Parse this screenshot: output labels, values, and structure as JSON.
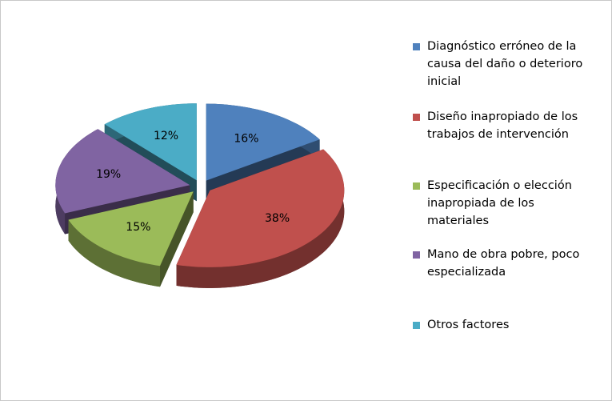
{
  "chart_data": {
    "type": "pie",
    "categories": [
      "Diagnóstico erróneo de la causa del daño o deterioro inicial",
      "Diseño inapropiado de los trabajos de intervención",
      "Especificación o elección inapropiada de los materiales",
      "Mano de obra pobre, poco especializada",
      "Otros factores"
    ],
    "values": [
      16,
      38,
      15,
      19,
      12
    ],
    "value_labels": [
      "16%",
      "38%",
      "15%",
      "19%",
      "12%"
    ],
    "colors": [
      "#4f81bd",
      "#c0504d",
      "#9bbb59",
      "#8064a2",
      "#4bacc6"
    ],
    "legend": "right"
  }
}
